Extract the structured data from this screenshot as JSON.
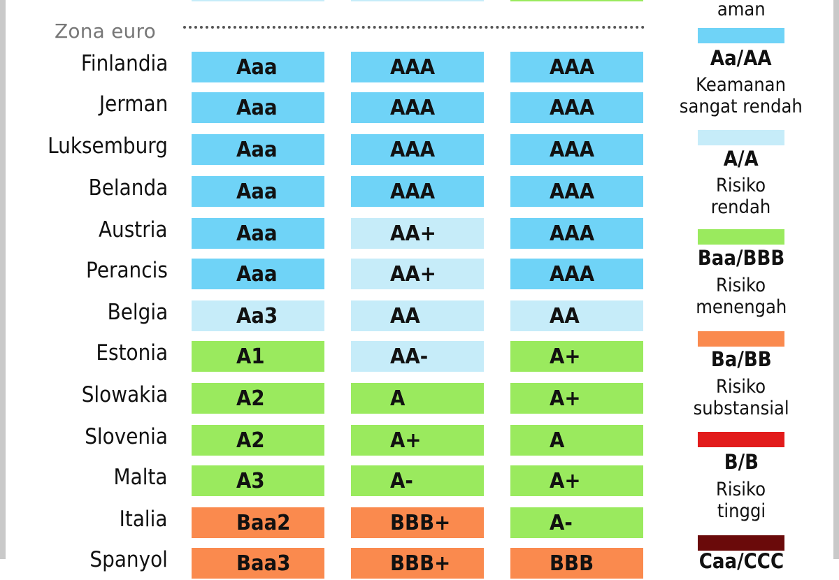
{
  "chart_data": {
    "type": "table",
    "section_label": "Zona euro",
    "colors": {
      "Aaa/AAA": "#6fd3f7",
      "Aa/AA": "#c6ecf9",
      "A/A": "#9aea5e",
      "Baa/BBB": "#fa8a4e",
      "Ba/BB": "#e21b1b",
      "B/B": "#6a0a0a",
      "Caa/CCC": "#000000"
    },
    "rows": [
      {
        "country": "Finlandia",
        "ratings": [
          {
            "v": "Aaa",
            "c": "Aaa/AAA"
          },
          {
            "v": "AAA",
            "c": "Aaa/AAA"
          },
          {
            "v": "AAA",
            "c": "Aaa/AAA"
          }
        ]
      },
      {
        "country": "Jerman",
        "ratings": [
          {
            "v": "Aaa",
            "c": "Aaa/AAA"
          },
          {
            "v": "AAA",
            "c": "Aaa/AAA"
          },
          {
            "v": "AAA",
            "c": "Aaa/AAA"
          }
        ]
      },
      {
        "country": "Luksemburg",
        "ratings": [
          {
            "v": "Aaa",
            "c": "Aaa/AAA"
          },
          {
            "v": "AAA",
            "c": "Aaa/AAA"
          },
          {
            "v": "AAA",
            "c": "Aaa/AAA"
          }
        ]
      },
      {
        "country": "Belanda",
        "ratings": [
          {
            "v": "Aaa",
            "c": "Aaa/AAA"
          },
          {
            "v": "AAA",
            "c": "Aaa/AAA"
          },
          {
            "v": "AAA",
            "c": "Aaa/AAA"
          }
        ]
      },
      {
        "country": "Austria",
        "ratings": [
          {
            "v": "Aaa",
            "c": "Aaa/AAA"
          },
          {
            "v": "AA+",
            "c": "Aa/AA"
          },
          {
            "v": "AAA",
            "c": "Aaa/AAA"
          }
        ]
      },
      {
        "country": "Perancis",
        "ratings": [
          {
            "v": "Aaa",
            "c": "Aaa/AAA"
          },
          {
            "v": "AA+",
            "c": "Aa/AA"
          },
          {
            "v": "AAA",
            "c": "Aaa/AAA"
          }
        ]
      },
      {
        "country": "Belgia",
        "ratings": [
          {
            "v": "Aa3",
            "c": "Aa/AA"
          },
          {
            "v": "AA",
            "c": "Aa/AA"
          },
          {
            "v": "AA",
            "c": "Aa/AA"
          }
        ]
      },
      {
        "country": "Estonia",
        "ratings": [
          {
            "v": "A1",
            "c": "A/A"
          },
          {
            "v": "AA-",
            "c": "Aa/AA"
          },
          {
            "v": "A+",
            "c": "A/A"
          }
        ]
      },
      {
        "country": "Slowakia",
        "ratings": [
          {
            "v": "A2",
            "c": "A/A"
          },
          {
            "v": "A",
            "c": "A/A"
          },
          {
            "v": "A+",
            "c": "A/A"
          }
        ]
      },
      {
        "country": "Slovenia",
        "ratings": [
          {
            "v": "A2",
            "c": "A/A"
          },
          {
            "v": "A+",
            "c": "A/A"
          },
          {
            "v": "A",
            "c": "A/A"
          }
        ]
      },
      {
        "country": "Malta",
        "ratings": [
          {
            "v": "A3",
            "c": "A/A"
          },
          {
            "v": "A-",
            "c": "A/A"
          },
          {
            "v": "A+",
            "c": "A/A"
          }
        ]
      },
      {
        "country": "Italia",
        "ratings": [
          {
            "v": "Baa2",
            "c": "Baa/BBB"
          },
          {
            "v": "BBB+",
            "c": "Baa/BBB"
          },
          {
            "v": "A-",
            "c": "A/A"
          }
        ]
      },
      {
        "country": "Spanyol",
        "ratings": [
          {
            "v": "Baa3",
            "c": "Baa/BBB"
          },
          {
            "v": "BBB+",
            "c": "Baa/BBB"
          },
          {
            "v": "BBB",
            "c": "Baa/BBB"
          }
        ]
      }
    ],
    "legend": [
      {
        "key": "Aaa/AAA",
        "title": "",
        "desc": [
          "aman"
        ]
      },
      {
        "key": "Aa/AA",
        "title": "Aa/AA",
        "desc": [
          "Keamanan",
          "sangat rendah"
        ]
      },
      {
        "key": "A/A",
        "title": "A/A",
        "desc": [
          "Risiko",
          "rendah"
        ]
      },
      {
        "key": "Baa/BBB",
        "title": "Baa/BBB",
        "desc": [
          "Risiko",
          "menengah"
        ]
      },
      {
        "key": "Ba/BB",
        "title": "Ba/BB",
        "desc": [
          "Risiko",
          "substansial"
        ]
      },
      {
        "key": "B/B",
        "title": "B/B",
        "desc": [
          "Risiko",
          "tinggi"
        ]
      },
      {
        "key": "Caa/CCC",
        "title": "Caa/CCC",
        "desc": []
      }
    ]
  }
}
